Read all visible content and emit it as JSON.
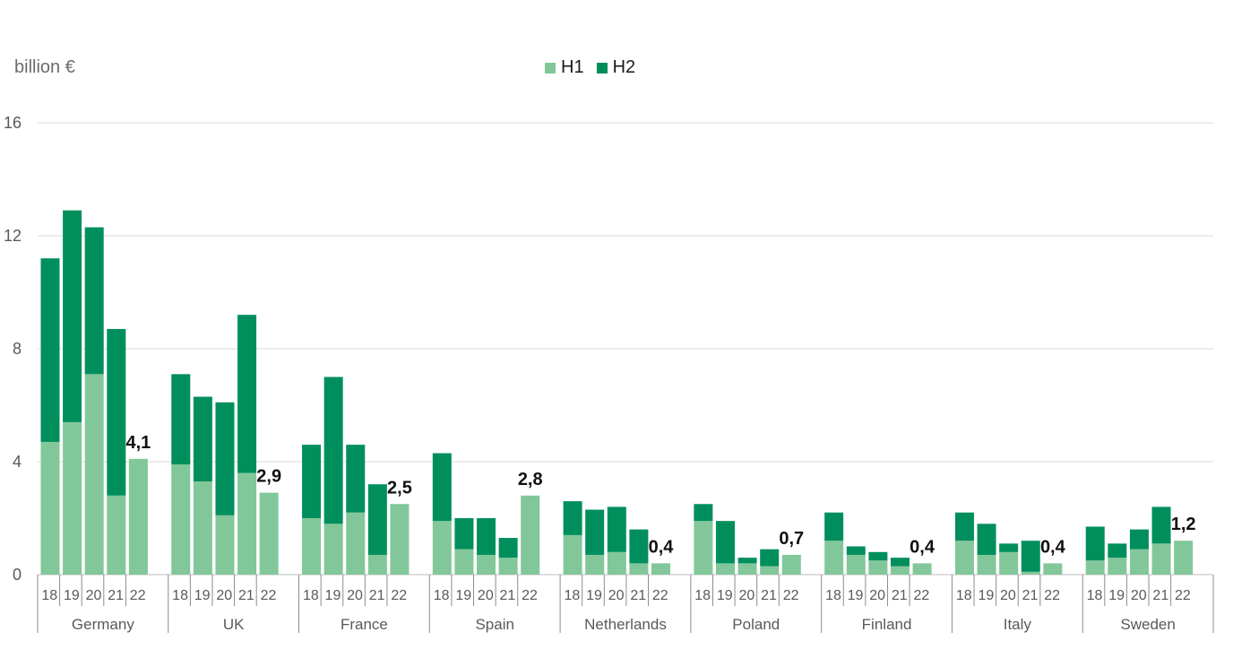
{
  "chart_data": {
    "type": "bar",
    "stacked": true,
    "unit_label": "billion €",
    "ylim": [
      0,
      16
    ],
    "yticks": [
      0,
      4,
      8,
      12,
      16
    ],
    "grid": true,
    "legend_position": "top-center",
    "colors": {
      "H1": "#82c79a",
      "H2": "#008f5c"
    },
    "series_names": [
      "H1",
      "H2"
    ],
    "years": [
      "18",
      "19",
      "20",
      "21",
      "22"
    ],
    "groups": [
      {
        "name": "Germany",
        "h1": [
          4.7,
          5.4,
          7.1,
          2.8,
          4.1
        ],
        "h2": [
          6.5,
          7.5,
          5.2,
          5.9,
          0
        ],
        "label": "4,1"
      },
      {
        "name": "UK",
        "h1": [
          3.9,
          3.3,
          2.1,
          3.6,
          2.9
        ],
        "h2": [
          3.2,
          3.0,
          4.0,
          5.6,
          0
        ],
        "label": "2,9"
      },
      {
        "name": "France",
        "h1": [
          2.0,
          1.8,
          2.2,
          0.7,
          2.5
        ],
        "h2": [
          2.6,
          5.2,
          2.4,
          2.5,
          0
        ],
        "label": "2,5"
      },
      {
        "name": "Spain",
        "h1": [
          1.9,
          0.9,
          0.7,
          0.6,
          2.8
        ],
        "h2": [
          2.4,
          1.1,
          1.3,
          0.7,
          0
        ],
        "label": "2,8"
      },
      {
        "name": "Netherlands",
        "h1": [
          1.4,
          0.7,
          0.8,
          0.4,
          0.4
        ],
        "h2": [
          1.2,
          1.6,
          1.6,
          1.2,
          0
        ],
        "label": "0,4"
      },
      {
        "name": "Poland",
        "h1": [
          1.9,
          0.4,
          0.4,
          0.3,
          0.7
        ],
        "h2": [
          0.6,
          1.5,
          0.2,
          0.6,
          0
        ],
        "label": "0,7"
      },
      {
        "name": "Finland",
        "h1": [
          1.2,
          0.7,
          0.5,
          0.3,
          0.4
        ],
        "h2": [
          1.0,
          0.3,
          0.3,
          0.3,
          0
        ],
        "label": "0,4"
      },
      {
        "name": "Italy",
        "h1": [
          1.2,
          0.7,
          0.8,
          0.1,
          0.4
        ],
        "h2": [
          1.0,
          1.1,
          0.3,
          1.1,
          0
        ],
        "label": "0,4"
      },
      {
        "name": "Sweden",
        "h1": [
          0.5,
          0.6,
          0.9,
          1.1,
          1.2
        ],
        "h2": [
          1.2,
          0.5,
          0.7,
          1.3,
          0
        ],
        "label": "1,2"
      }
    ]
  }
}
